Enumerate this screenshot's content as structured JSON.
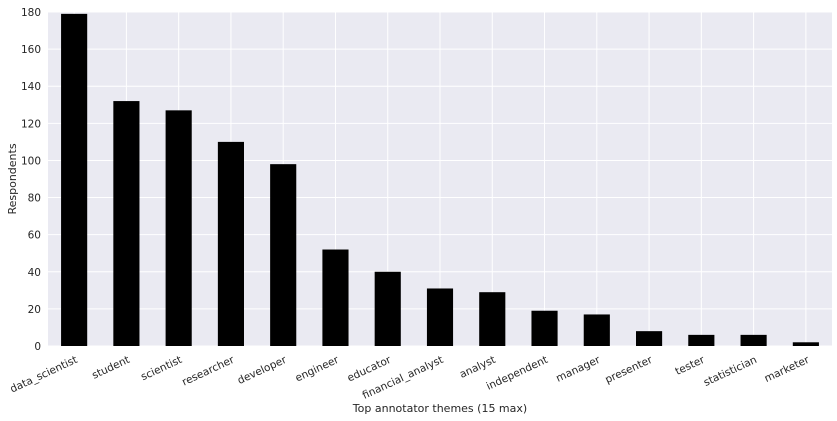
{
  "chart_data": {
    "type": "bar",
    "categories": [
      "data_scientist",
      "student",
      "scientist",
      "researcher",
      "developer",
      "engineer",
      "educator",
      "financial_analyst",
      "analyst",
      "independent",
      "manager",
      "presenter",
      "tester",
      "statistician",
      "marketer"
    ],
    "values": [
      179,
      132,
      127,
      110,
      98,
      52,
      40,
      31,
      29,
      19,
      17,
      8,
      6,
      6,
      2
    ],
    "xlabel": "Top annotator themes (15 max)",
    "ylabel": "Respondents",
    "ylim": [
      0,
      180
    ],
    "yticks": [
      0,
      20,
      40,
      60,
      80,
      100,
      120,
      140,
      160,
      180
    ],
    "bar_color": "#000000",
    "plot_background": "#eaeaf2",
    "grid_color": "#ffffff",
    "grid": true
  }
}
